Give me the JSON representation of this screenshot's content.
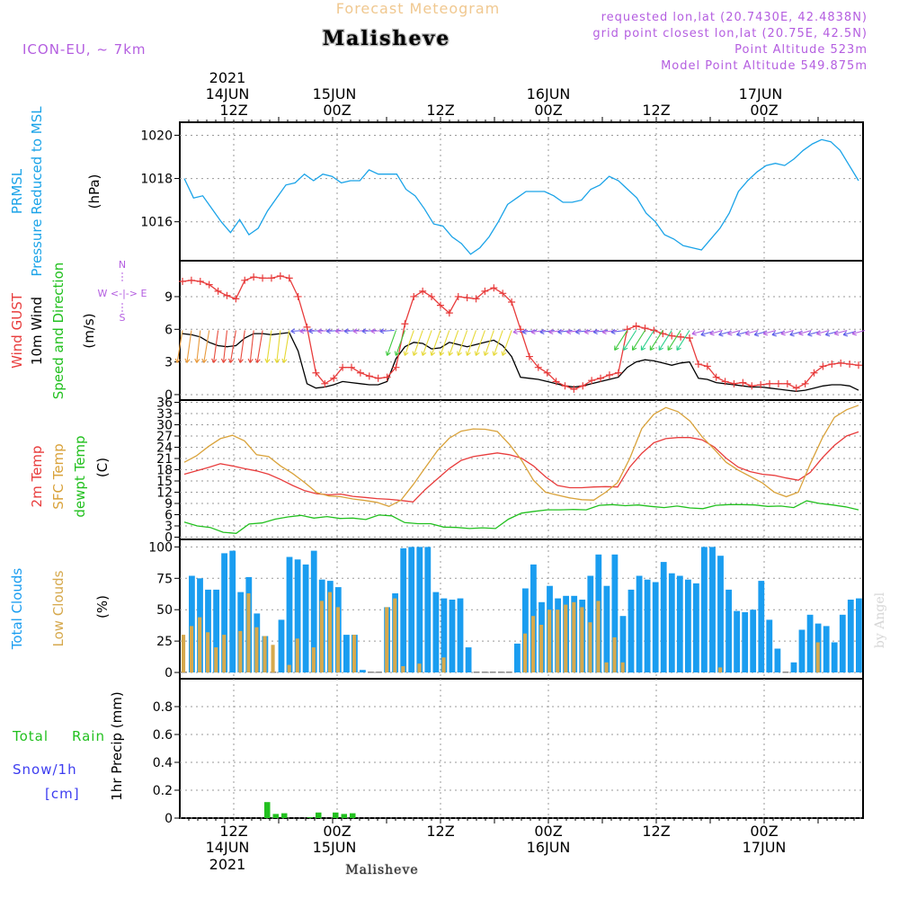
{
  "header": {
    "subtitle": "Forecast Meteogram",
    "title": "Malisheve",
    "model": "ICON-EU,  ~ 7km",
    "requested": "requested lon,lat (20.7430E, 42.4838N)",
    "gridpoint": "grid point closest lon,lat (20.75E, 42.5N)",
    "point_alt": "Point Altitude 523m",
    "model_alt": "Model Point Altitude 549.875m",
    "footer": "Malisheve",
    "watermark": "by Angel"
  },
  "colors": {
    "pressure": "#1aa3e8",
    "gust": "#e83c3c",
    "wind": "#000000",
    "temp2m": "#e83c3c",
    "sfc": "#d9a23a",
    "dew": "#22c01f",
    "total_cloud": "#1a9df0",
    "low_cloud": "#d6a94d",
    "rain": "#22c01f",
    "snow": "#3c3cf0",
    "purple": "#b45ee0",
    "arrow_yellow": "#e6d833",
    "arrow_orange": "#e89a3c",
    "arrow_red": "#e84a3c",
    "arrow_blue": "#5a5ae8",
    "arrow_green": "#2ad08a"
  },
  "time_axis": {
    "top_year": "2021",
    "top_dates": [
      "14JUN",
      "15JUN",
      "16JUN",
      "17JUN"
    ],
    "top_hours": [
      "12Z",
      "00Z",
      "12Z",
      "00Z",
      "12Z",
      "00Z"
    ],
    "bottom_hours": [
      "12Z",
      "00Z",
      "12Z",
      "00Z",
      "12Z",
      "00Z"
    ],
    "bottom_dates": [
      "14JUN",
      "15JUN",
      "16JUN",
      "17JUN"
    ],
    "bottom_year": "2021"
  },
  "panel_labels": {
    "pressure": [
      "PRMSL",
      "Pressure Reduced to MSL",
      "(hPa)"
    ],
    "wind": [
      "Wind GUST",
      "10m Wind",
      "Speed and Direction",
      "(m/s)"
    ],
    "compass": [
      "N",
      "W <-|-> E",
      "S"
    ],
    "temp": [
      "2m Temp",
      "SFC Temp",
      "dewpt Temp",
      "(C)"
    ],
    "cloud": [
      "Total Clouds",
      "Low Clouds",
      "(%)"
    ],
    "precip": [
      "Total",
      "Rain",
      "Snow/1h",
      "[cm]",
      "1hr Precip (mm)"
    ]
  },
  "chart_data": [
    {
      "type": "line",
      "title": "PRMSL Pressure Reduced to MSL",
      "ylabel": "(hPa)",
      "ylim": [
        1014.2,
        1020.6
      ],
      "yticks": [
        1016,
        1018,
        1020
      ],
      "x_hours_from_14JUN_00Z": [
        7.5,
        70
      ],
      "series": [
        {
          "name": "PRMSL",
          "values": [
            1018.0,
            1017.1,
            1017.2,
            1016.6,
            1016.0,
            1015.5,
            1016.1,
            1015.4,
            1015.7,
            1016.5,
            1017.1,
            1017.7,
            1017.8,
            1018.2,
            1017.9,
            1018.2,
            1018.1,
            1017.8,
            1017.9,
            1017.9,
            1018.4,
            1018.2,
            1018.2,
            1018.2,
            1017.5,
            1017.2,
            1016.6,
            1015.9,
            1015.8,
            1015.3,
            1015.0,
            1014.5,
            1014.8,
            1015.3,
            1016.0,
            1016.8,
            1017.1,
            1017.4,
            1017.4,
            1017.4,
            1017.2,
            1016.9,
            1016.9,
            1017.0,
            1017.5,
            1017.7,
            1018.1,
            1017.9,
            1017.5,
            1017.1,
            1016.4,
            1016.0,
            1015.4,
            1015.2,
            1014.9,
            1014.8,
            1014.7,
            1015.2,
            1015.7,
            1016.4,
            1017.4,
            1017.9,
            1018.3,
            1018.6,
            1018.7,
            1018.6,
            1018.9,
            1019.3,
            1019.6,
            1019.8,
            1019.7,
            1019.3,
            1018.6,
            1017.9
          ]
        }
      ]
    },
    {
      "type": "line",
      "title": "Wind GUST / 10m Wind",
      "ylabel": "(m/s)",
      "ylim": [
        -0.5,
        12.3
      ],
      "yticks": [
        0,
        3,
        6,
        9
      ],
      "series": [
        {
          "name": "Wind GUST",
          "values": [
            10.4,
            10.5,
            10.4,
            10.1,
            9.5,
            9.1,
            8.8,
            10.5,
            10.8,
            10.7,
            10.7,
            10.9,
            10.7,
            9.0,
            6.2,
            2.0,
            1.0,
            1.5,
            2.5,
            2.5,
            2.0,
            1.7,
            1.5,
            1.6,
            2.5,
            6.5,
            9.0,
            9.5,
            9.0,
            8.2,
            7.5,
            9.0,
            8.9,
            8.8,
            9.5,
            9.8,
            9.3,
            8.5,
            6.0,
            3.5,
            2.5,
            2.0,
            1.2,
            0.8,
            0.5,
            0.8,
            1.3,
            1.5,
            1.8,
            2.0,
            6.0,
            6.3,
            6.1,
            5.9,
            5.6,
            5.4,
            5.3,
            5.2,
            2.8,
            2.6,
            1.6,
            1.2,
            1.0,
            1.1,
            0.8,
            0.9,
            1.0,
            1.0,
            1.0,
            0.6,
            1.0,
            2.0,
            2.6,
            2.8,
            2.9,
            2.8,
            2.7
          ]
        },
        {
          "name": "10m Wind",
          "values": [
            5.6,
            5.5,
            5.3,
            4.8,
            4.5,
            4.4,
            4.5,
            5.2,
            5.6,
            5.6,
            5.5,
            5.6,
            5.7,
            4.0,
            1.0,
            0.6,
            0.7,
            0.9,
            1.2,
            1.1,
            1.0,
            0.9,
            0.9,
            1.2,
            3.3,
            4.4,
            4.8,
            4.7,
            4.2,
            4.3,
            4.8,
            4.6,
            4.4,
            4.6,
            4.8,
            5.0,
            4.5,
            3.5,
            1.6,
            1.5,
            1.4,
            1.2,
            1.0,
            0.8,
            0.7,
            0.8,
            1.0,
            1.2,
            1.4,
            1.6,
            2.5,
            3.0,
            3.2,
            3.1,
            2.9,
            2.7,
            2.9,
            3.0,
            1.5,
            1.4,
            1.1,
            1.0,
            0.9,
            0.8,
            0.7,
            0.7,
            0.6,
            0.5,
            0.4,
            0.3,
            0.4,
            0.6,
            0.8,
            0.9,
            0.9,
            0.8,
            0.4
          ]
        }
      ]
    },
    {
      "type": "line",
      "title": "2m Temp / SFC Temp / dewpt Temp",
      "ylabel": "(C)",
      "ylim": [
        -0.6,
        36.6
      ],
      "yticks": [
        0,
        3,
        6,
        9,
        12,
        15,
        18,
        21,
        24,
        27,
        30,
        33,
        36
      ],
      "series": [
        {
          "name": "2m Temp",
          "values": [
            16.8,
            17.7,
            18.6,
            19.6,
            19.0,
            18.3,
            17.7,
            16.8,
            15.4,
            13.8,
            12.4,
            11.6,
            11.3,
            11.5,
            10.9,
            10.6,
            10.3,
            10.1,
            9.8,
            9.4,
            12.7,
            15.5,
            18.3,
            20.5,
            21.5,
            22.0,
            22.5,
            22.0,
            21.1,
            19.0,
            16.1,
            13.8,
            13.2,
            13.2,
            13.4,
            13.5,
            13.4,
            18.7,
            22.4,
            25.2,
            26.3,
            26.6,
            26.6,
            26.0,
            24.1,
            21.1,
            18.7,
            17.5,
            16.8,
            16.5,
            15.8,
            15.2,
            17.3,
            21.2,
            24.5,
            27.0,
            28.1
          ]
        },
        {
          "name": "SFC Temp",
          "values": [
            20.0,
            21.7,
            24.2,
            26.3,
            27.2,
            25.7,
            22.0,
            21.5,
            19.0,
            17.0,
            14.6,
            11.9,
            11.0,
            10.8,
            10.2,
            9.8,
            9.3,
            8.2,
            9.9,
            14.0,
            18.5,
            23.0,
            26.4,
            28.3,
            28.9,
            28.8,
            28.2,
            24.8,
            20.6,
            15.2,
            12.0,
            11.2,
            10.5,
            10.0,
            9.9,
            12.0,
            14.6,
            21.0,
            29.0,
            32.8,
            34.6,
            33.5,
            31.0,
            26.8,
            23.5,
            20.0,
            17.9,
            16.2,
            14.5,
            12.0,
            10.8,
            12.0,
            19.6,
            26.5,
            32.0,
            34.0,
            35.2
          ]
        },
        {
          "name": "dewpt Temp",
          "values": [
            4.0,
            3.0,
            2.6,
            1.3,
            1.0,
            3.5,
            3.8,
            4.8,
            5.4,
            5.8,
            5.1,
            5.5,
            5.0,
            5.1,
            4.7,
            5.9,
            5.7,
            3.9,
            3.6,
            3.6,
            2.7,
            2.6,
            2.3,
            2.5,
            2.3,
            4.8,
            6.4,
            6.9,
            7.3,
            7.3,
            7.4,
            7.3,
            8.5,
            8.7,
            8.4,
            8.6,
            8.2,
            7.9,
            8.3,
            7.8,
            7.6,
            8.5,
            8.7,
            8.7,
            8.6,
            8.2,
            8.3,
            7.9,
            9.7,
            9.0,
            8.6,
            8.1,
            7.3
          ]
        }
      ]
    },
    {
      "type": "bar",
      "title": "Total Clouds / Low Clouds",
      "ylabel": "(%)",
      "ylim": [
        -5,
        106
      ],
      "yticks": [
        0,
        25,
        50,
        75,
        100
      ],
      "series": [
        {
          "name": "Total Clouds",
          "values": [
            0,
            77,
            75,
            66,
            66,
            95,
            97,
            64,
            76,
            47,
            29,
            0,
            42,
            92,
            90,
            86,
            97,
            74,
            73,
            68,
            30,
            30,
            2,
            0,
            0,
            52,
            63,
            99,
            100,
            100,
            100,
            64,
            59,
            58,
            59,
            20,
            0,
            0,
            0,
            0,
            0,
            23,
            67,
            86,
            56,
            69,
            59,
            61,
            61,
            58,
            77,
            94,
            69,
            94,
            45,
            66,
            77,
            74,
            72,
            88,
            79,
            77,
            74,
            71,
            100,
            100,
            93,
            66,
            49,
            48,
            50,
            73,
            42,
            19,
            0,
            8,
            34,
            46,
            39,
            37,
            24,
            46,
            58,
            59
          ]
        },
        {
          "name": "Low Clouds",
          "values": [
            30,
            37,
            44,
            32,
            20,
            30,
            0,
            33,
            63,
            36,
            29,
            22,
            0,
            6,
            27,
            0,
            20,
            57,
            64,
            52,
            0,
            30,
            0,
            0,
            0,
            52,
            59,
            5,
            0,
            7,
            0,
            0,
            12,
            0,
            0,
            0,
            0,
            0,
            0,
            0,
            0,
            0,
            31,
            45,
            38,
            50,
            50,
            54,
            56,
            52,
            40,
            57,
            8,
            28,
            8,
            0,
            0,
            0,
            0,
            0,
            0,
            0,
            0,
            0,
            0,
            0,
            4,
            0,
            0,
            0,
            0,
            0,
            0,
            0,
            0,
            0,
            0,
            0,
            24,
            0,
            0,
            0,
            0,
            0
          ]
        }
      ]
    },
    {
      "type": "bar",
      "title": "1hr Precip",
      "ylabel": "1hr Precip (mm)",
      "ylim": [
        0,
        1.0
      ],
      "yticks": [
        0,
        0.2,
        0.4,
        0.6,
        0.8
      ],
      "series": [
        {
          "name": "Total Rain",
          "values": [
            0,
            0,
            0,
            0,
            0,
            0,
            0,
            0.115,
            0.03,
            0.035,
            0,
            0,
            0.005,
            0.04,
            0,
            0.04,
            0.03,
            0.035,
            0,
            0,
            0,
            0,
            0,
            0
          ]
        }
      ]
    }
  ]
}
